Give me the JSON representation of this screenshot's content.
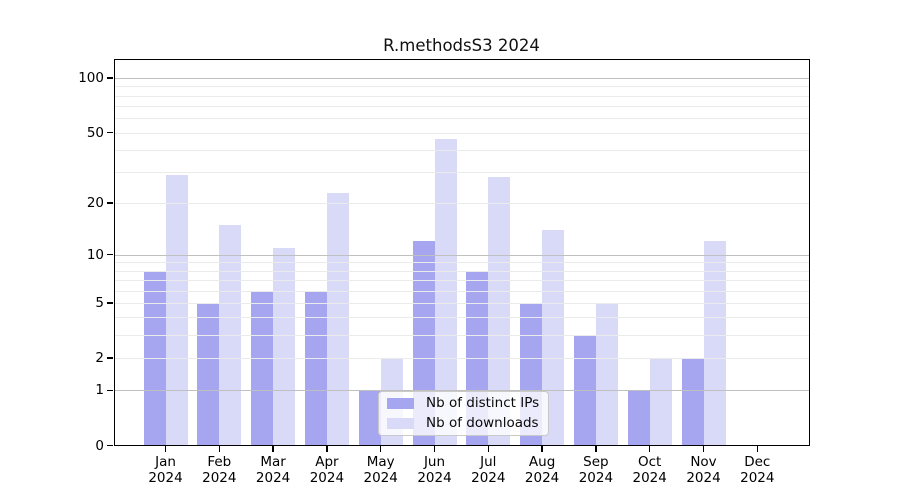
{
  "title": "R.methodsS3 2024",
  "legend": {
    "items": [
      {
        "label": "Nb of distinct IPs",
        "color": "#a6a6f0"
      },
      {
        "label": "Nb of downloads",
        "color": "#d9d9f8"
      }
    ]
  },
  "chart_data": {
    "type": "bar",
    "title": "R.methodsS3 2024",
    "categories": [
      "Jan",
      "Feb",
      "Mar",
      "Apr",
      "May",
      "Jun",
      "Jul",
      "Aug",
      "Sep",
      "Oct",
      "Nov",
      "Dec"
    ],
    "year_label": "2024",
    "series": [
      {
        "name": "Nb of distinct IPs",
        "color": "#a6a6f0",
        "values": [
          8,
          5,
          6,
          6,
          1,
          12,
          8,
          5,
          3,
          1,
          2,
          0
        ]
      },
      {
        "name": "Nb of downloads",
        "color": "#d9d9f8",
        "values": [
          29,
          15,
          11,
          23,
          2,
          46,
          28,
          14,
          5,
          2,
          12,
          0
        ]
      }
    ],
    "xlabel": "",
    "ylabel": "",
    "yscale": "log1p",
    "ylim": [
      0,
      130
    ],
    "ytick_labels": [
      0,
      1,
      2,
      5,
      10,
      20,
      50,
      100
    ],
    "grid_values": [
      1,
      2,
      3,
      4,
      5,
      6,
      7,
      8,
      9,
      10,
      20,
      30,
      40,
      50,
      60,
      70,
      80,
      90,
      100
    ],
    "grid_emphasis_values": [
      1,
      10,
      100
    ],
    "grid": "on",
    "legend_position": "inside-bottom-center",
    "colors": {
      "grid_major": "#c0c0c0",
      "grid_minor": "#ebebeb",
      "axis": "#000000",
      "background": "#ffffff"
    }
  }
}
